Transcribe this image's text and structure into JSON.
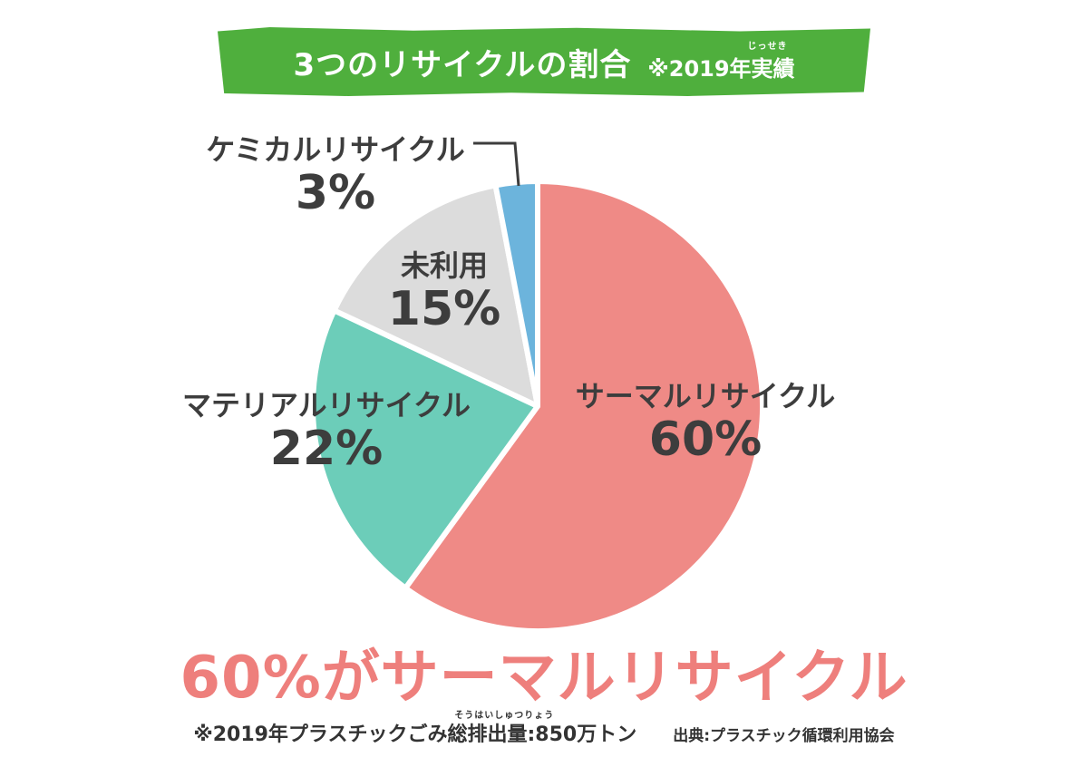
{
  "colors": {
    "banner": "#4faf3d",
    "thermal": "#ef8a86",
    "material": "#6ccdb9",
    "unused": "#dcdcdc",
    "chemical": "#6cb4dc",
    "headline": "#ee7f7c",
    "text": "#3d3d3d"
  },
  "chart_data": {
    "type": "pie",
    "title": "3つのリサイクルの割合",
    "title_note": "※2019年実績",
    "title_note_ruby": "じっせき",
    "slices": [
      {
        "label": "サーマルリサイクル",
        "value": 60,
        "display": "60%",
        "color": "#ef8a86"
      },
      {
        "label": "マテリアルリサイクル",
        "value": 22,
        "display": "22%",
        "color": "#6ccdb9"
      },
      {
        "label": "未利用",
        "value": 15,
        "display": "15%",
        "color": "#dcdcdc"
      },
      {
        "label": "ケミカルリサイクル",
        "value": 3,
        "display": "3%",
        "color": "#6cb4dc"
      }
    ],
    "start": "12 o'clock",
    "direction": "clockwise",
    "legend": "none"
  },
  "headline": "60%がサーマルリサイクル",
  "footnote": "※2019年プラスチックごみ総排出量:850万トン",
  "footnote_ruby": "そうはいしゅつりょう",
  "source": "出典:プラスチック循環利用協会"
}
